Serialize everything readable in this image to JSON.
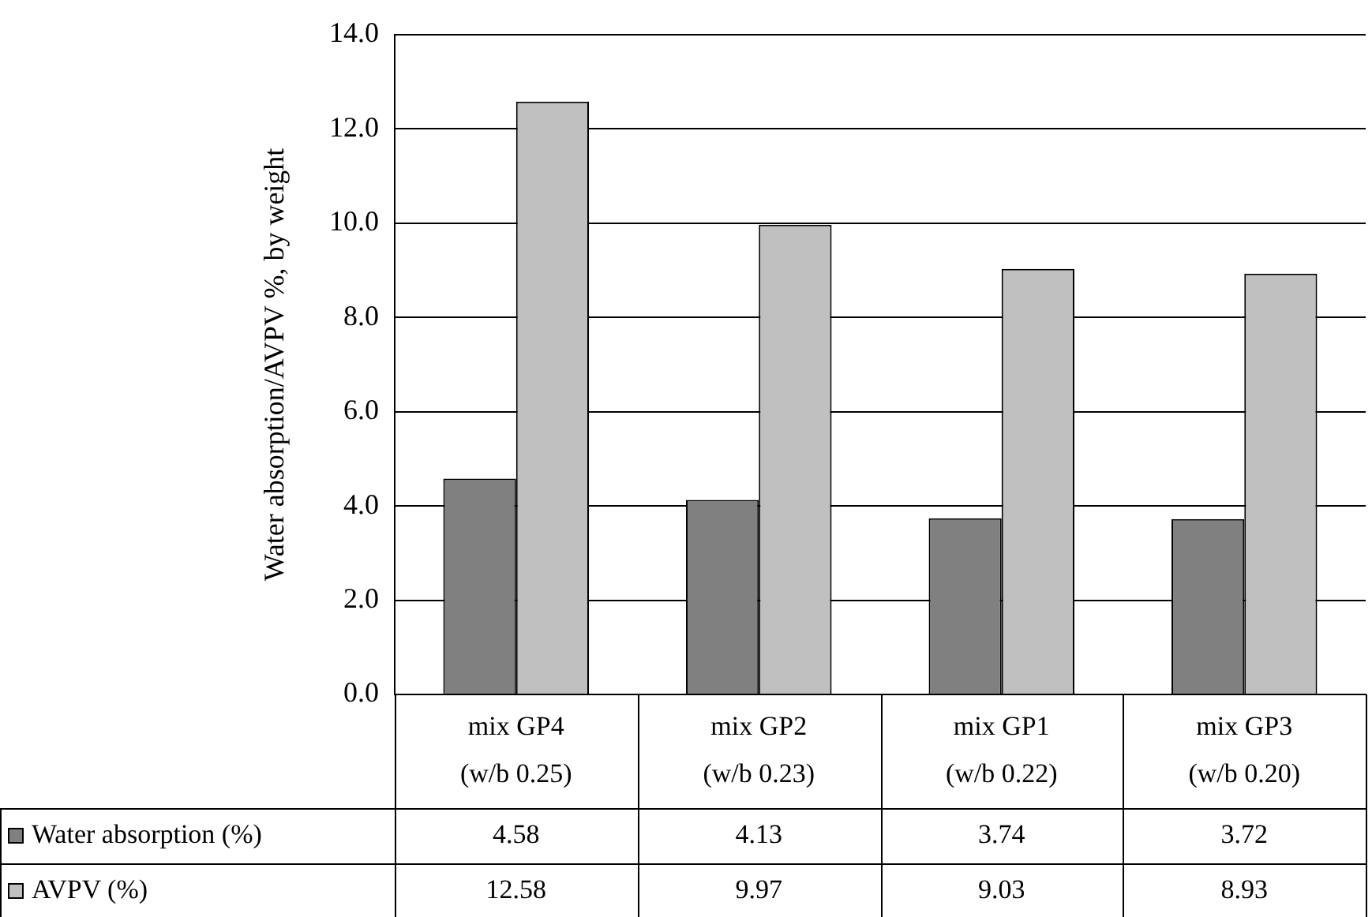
{
  "chart_data": {
    "type": "bar",
    "ylabel": "Water absorption/AVPV %, by weight",
    "categories": [
      "mix GP4\n(w/b 0.25)",
      "mix GP2\n(w/b 0.23)",
      "mix GP1\n(w/b 0.22)",
      "mix GP3\n(w/b 0.20)"
    ],
    "series": [
      {
        "name": "Water absorption (%)",
        "color": "#808080",
        "values": [
          4.58,
          4.13,
          3.74,
          3.72
        ]
      },
      {
        "name": "AVPV (%)",
        "color": "#c0c0c0",
        "values": [
          12.58,
          9.97,
          9.03,
          8.93
        ]
      }
    ],
    "ylim": [
      0,
      14
    ],
    "yticks": [
      {
        "value": 0,
        "label": "0.0"
      },
      {
        "value": 2,
        "label": "2.0"
      },
      {
        "value": 4,
        "label": "4.0"
      },
      {
        "value": 6,
        "label": "6.0"
      },
      {
        "value": 8,
        "label": "8.0"
      },
      {
        "value": 10,
        "label": "10.0"
      },
      {
        "value": 12,
        "label": "12.0"
      },
      {
        "value": 14,
        "label": "14.0"
      }
    ],
    "grid": "y",
    "data_labels": true,
    "legend": "bottom"
  }
}
